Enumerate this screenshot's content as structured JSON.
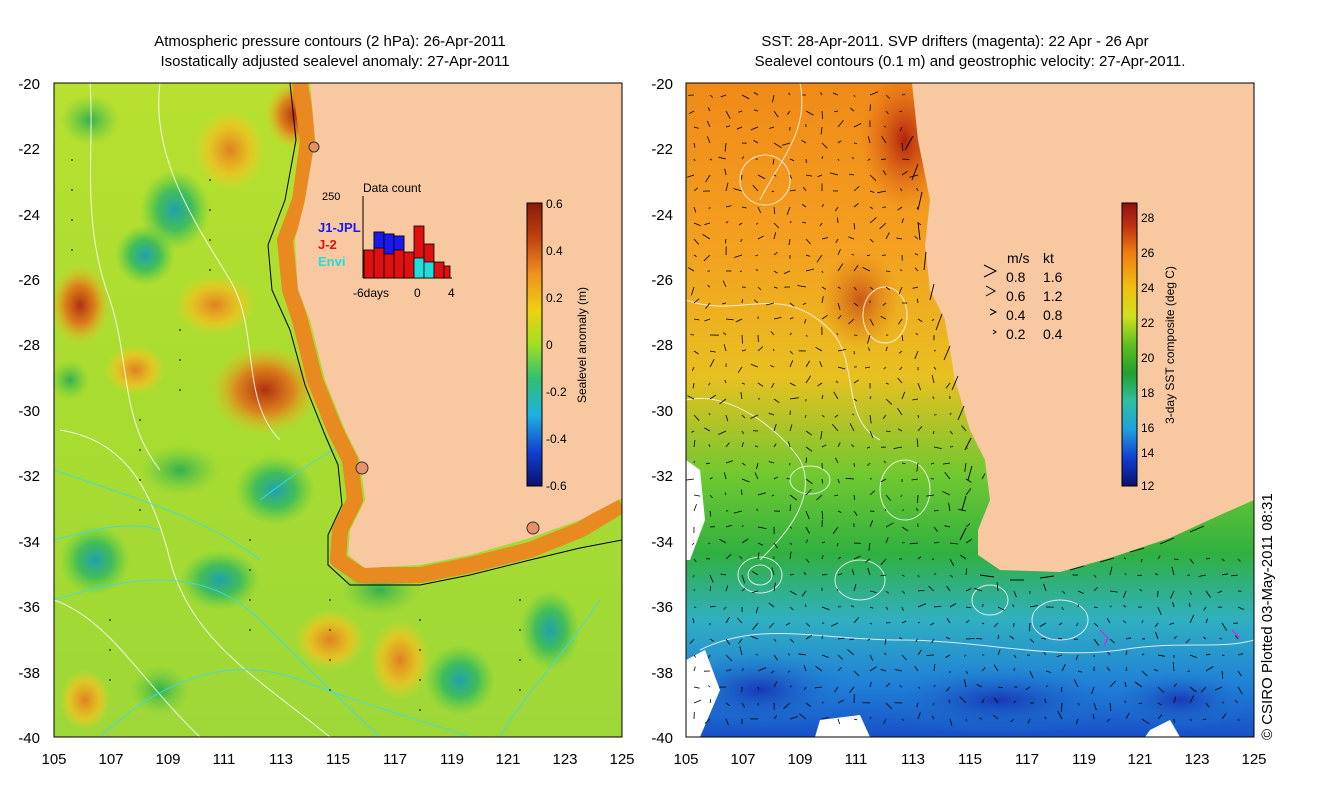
{
  "left_panel": {
    "title_line1": "Atmospheric pressure contours (2 hPa): 26-Apr-2011",
    "title_line2": "Isostatically adjusted sealevel anomaly: 27-Apr-2011",
    "colorbar": {
      "label": "Sealevel anomaly (m)",
      "ticks": [
        "0.6",
        "0.4",
        "0.2",
        "0",
        "-0.2",
        "-0.4",
        "-0.6"
      ]
    },
    "inset": {
      "title": "Data count",
      "ymax_label": "250",
      "series": [
        "J1-JPL",
        "J-2",
        "Envi"
      ],
      "series_colors": [
        "#1a1aee",
        "#e01010",
        "#22dddd"
      ],
      "x_labels": [
        "-6days",
        "0",
        "4"
      ]
    },
    "markers": [
      "tide-gauge-north",
      "tide-gauge-perth",
      "tide-gauge-esperance"
    ]
  },
  "right_panel": {
    "title_line1": "SST: 28-Apr-2011. SVP drifters (magenta): 22 Apr - 26 Apr",
    "title_line2": "Sealevel contours (0.1 m) and geostrophic velocity: 27-Apr-2011.",
    "colorbar": {
      "label": "3-day SST composite (deg C)",
      "ticks": [
        "28",
        "26",
        "24",
        "22",
        "20",
        "18",
        "16",
        "14",
        "12"
      ]
    },
    "velocity_legend": {
      "header_ms": "m/s",
      "header_kt": "kt",
      "rows": [
        {
          "ms": "0.8",
          "kt": "1.6"
        },
        {
          "ms": "0.6",
          "kt": "1.2"
        },
        {
          "ms": "0.4",
          "kt": "0.8"
        },
        {
          "ms": "0.2",
          "kt": "0.4"
        }
      ]
    }
  },
  "axes": {
    "lat_labels": [
      "-20",
      "-22",
      "-24",
      "-26",
      "-28",
      "-30",
      "-32",
      "-34",
      "-36",
      "-38",
      "-40"
    ],
    "lon_labels": [
      "105",
      "107",
      "109",
      "111",
      "113",
      "115",
      "117",
      "119",
      "121",
      "123",
      "125"
    ]
  },
  "credit": "© CSIRO Plotted 03-May-2011 08:31",
  "colors": {
    "land": "#f8c8a0",
    "anomaly_scale": [
      "#0a1070",
      "#1040d0",
      "#20b0e0",
      "#30c070",
      "#a0e020",
      "#f0d010",
      "#f09020",
      "#c04010",
      "#8a1a08"
    ],
    "sst_scale": [
      "#0a1070",
      "#1040d0",
      "#20a0e0",
      "#30c0a0",
      "#20a030",
      "#60c020",
      "#d0e020",
      "#f0c010",
      "#f08010",
      "#c03010",
      "#901010"
    ]
  }
}
